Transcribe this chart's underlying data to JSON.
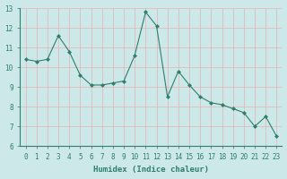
{
  "x": [
    0,
    1,
    2,
    3,
    4,
    5,
    6,
    7,
    8,
    9,
    10,
    11,
    12,
    13,
    14,
    15,
    16,
    17,
    18,
    19,
    20,
    21,
    22,
    23
  ],
  "y": [
    10.4,
    10.3,
    10.4,
    11.6,
    10.8,
    9.6,
    9.1,
    9.1,
    9.2,
    9.3,
    10.6,
    12.8,
    12.1,
    8.5,
    9.8,
    9.1,
    8.5,
    8.2,
    8.1,
    7.9,
    7.7,
    7.0,
    7.5,
    6.5
  ],
  "line_color": "#2e7f6e",
  "marker": "D",
  "marker_size": 2.0,
  "bg_color": "#cce8e8",
  "grid_color": "#b0d0d0",
  "xlabel": "Humidex (Indice chaleur)",
  "ylim": [
    6,
    13
  ],
  "xlim": [
    -0.5,
    23.5
  ],
  "yticks": [
    6,
    7,
    8,
    9,
    10,
    11,
    12,
    13
  ],
  "xticks": [
    0,
    1,
    2,
    3,
    4,
    5,
    6,
    7,
    8,
    9,
    10,
    11,
    12,
    13,
    14,
    15,
    16,
    17,
    18,
    19,
    20,
    21,
    22,
    23
  ],
  "label_fontsize": 6.5,
  "tick_fontsize": 5.5
}
